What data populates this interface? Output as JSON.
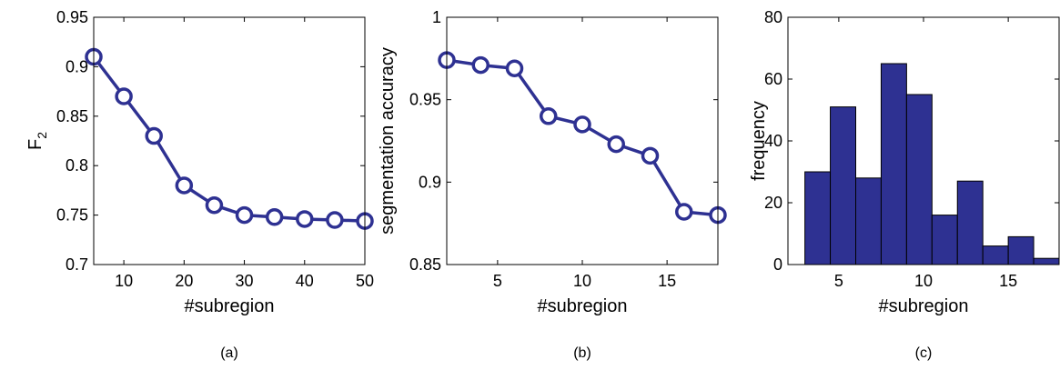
{
  "chart_data": [
    {
      "type": "line",
      "caption": "(a)",
      "xlabel": "#subregion",
      "ylabel": "F",
      "ylabel_sub": "2",
      "xlim": [
        5,
        50
      ],
      "ylim": [
        0.7,
        0.95
      ],
      "xticks": [
        10,
        20,
        30,
        40,
        50
      ],
      "yticks": [
        0.7,
        0.75,
        0.8,
        0.85,
        0.9,
        0.95
      ],
      "ytick_labels": [
        "0.7",
        "0.75",
        "0.8",
        "0.85",
        "0.9",
        "0.95"
      ],
      "series": [
        {
          "x": [
            5,
            10,
            15,
            20,
            25,
            30,
            35,
            40,
            45,
            50
          ],
          "y": [
            0.91,
            0.87,
            0.83,
            0.78,
            0.76,
            0.75,
            0.748,
            0.746,
            0.745,
            0.744
          ]
        }
      ],
      "color": "#2e3192",
      "marker": "circle"
    },
    {
      "type": "line",
      "caption": "(b)",
      "xlabel": "#subregion",
      "ylabel": "segmentation accuracy",
      "xlim": [
        2,
        18
      ],
      "ylim": [
        0.85,
        1.0
      ],
      "xticks": [
        5,
        10,
        15
      ],
      "yticks": [
        0.85,
        0.9,
        0.95,
        1.0
      ],
      "ytick_labels": [
        "0.85",
        "0.9",
        "0.95",
        "1"
      ],
      "series": [
        {
          "x": [
            2,
            4,
            6,
            8,
            10,
            12,
            14,
            16,
            18
          ],
          "y": [
            0.974,
            0.971,
            0.969,
            0.94,
            0.935,
            0.923,
            0.916,
            0.882,
            0.88
          ]
        }
      ],
      "color": "#2e3192",
      "marker": "circle"
    },
    {
      "type": "bar",
      "caption": "(c)",
      "xlabel": "#subregion",
      "ylabel": "frequency",
      "xlim": [
        2,
        18
      ],
      "ylim": [
        0,
        80
      ],
      "xticks": [
        5,
        10,
        15
      ],
      "yticks": [
        0,
        20,
        40,
        60,
        80
      ],
      "ytick_labels": [
        "0",
        "20",
        "40",
        "60",
        "80"
      ],
      "bin_width": 1.5,
      "bin_edges": [
        3.0,
        4.5,
        6.0,
        7.5,
        9.0,
        10.5,
        12.0,
        13.5,
        15.0,
        16.5,
        18.0
      ],
      "values": [
        30,
        51,
        28,
        65,
        55,
        16,
        27,
        6,
        9,
        2
      ],
      "color": "#2e3192"
    }
  ]
}
